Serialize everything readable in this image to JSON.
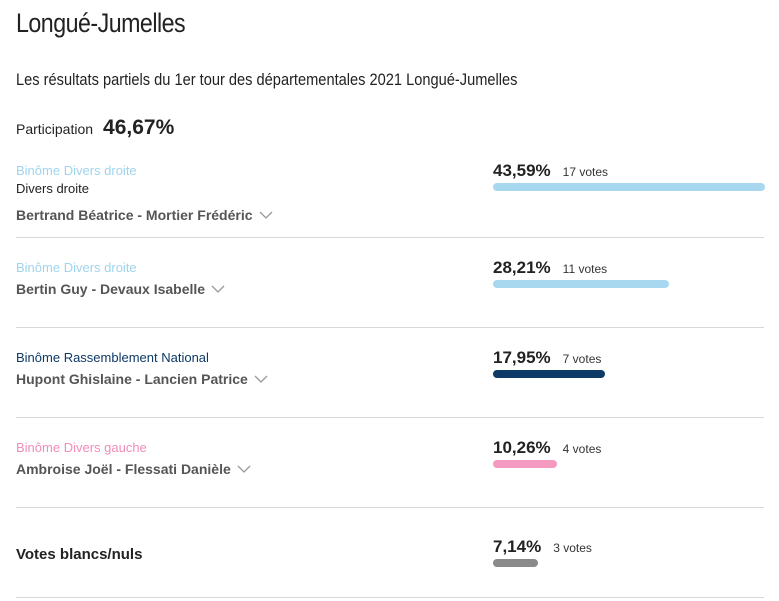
{
  "page": {
    "title": "Longué-Jumelles",
    "subtitle": "Les résultats partiels du 1er tour des départementales 2021 Longué-Jumelles"
  },
  "participation": {
    "label": "Participation",
    "value": "46,67%"
  },
  "results": [
    {
      "party": "Binôme Divers droite",
      "nuance": "Divers droite",
      "candidates": "Bertrand Béatrice - Mortier Frédéric",
      "percent": "43,59%",
      "votes": "17 votes",
      "share": 0.4359,
      "color": "#a8d8f0",
      "party_color": "#9fd4ee"
    },
    {
      "party": "Binôme Divers droite",
      "candidates": "Bertin Guy - Devaux Isabelle",
      "percent": "28,21%",
      "votes": "11 votes",
      "share": 0.2821,
      "color": "#a8d8f0",
      "party_color": "#9fd4ee"
    },
    {
      "party": "Binôme Rassemblement National",
      "candidates": "Hupont Ghislaine - Lancien Patrice",
      "percent": "17,95%",
      "votes": "7 votes",
      "share": 0.1795,
      "color": "#0d3a66",
      "party_color": "#0d3a66"
    },
    {
      "party": "Binôme Divers gauche",
      "candidates": "Ambroise Joël - Flessati Danièle",
      "percent": "10,26%",
      "votes": "4 votes",
      "share": 0.1026,
      "color": "#f49ac1",
      "party_color": "#f28cb8"
    }
  ],
  "blank": {
    "label": "Votes blancs/nuls",
    "percent": "7,14%",
    "votes": "3 votes",
    "share": 0.0714,
    "color": "#8a8a8a"
  },
  "icons": {
    "expand": "chevron-down-icon"
  }
}
